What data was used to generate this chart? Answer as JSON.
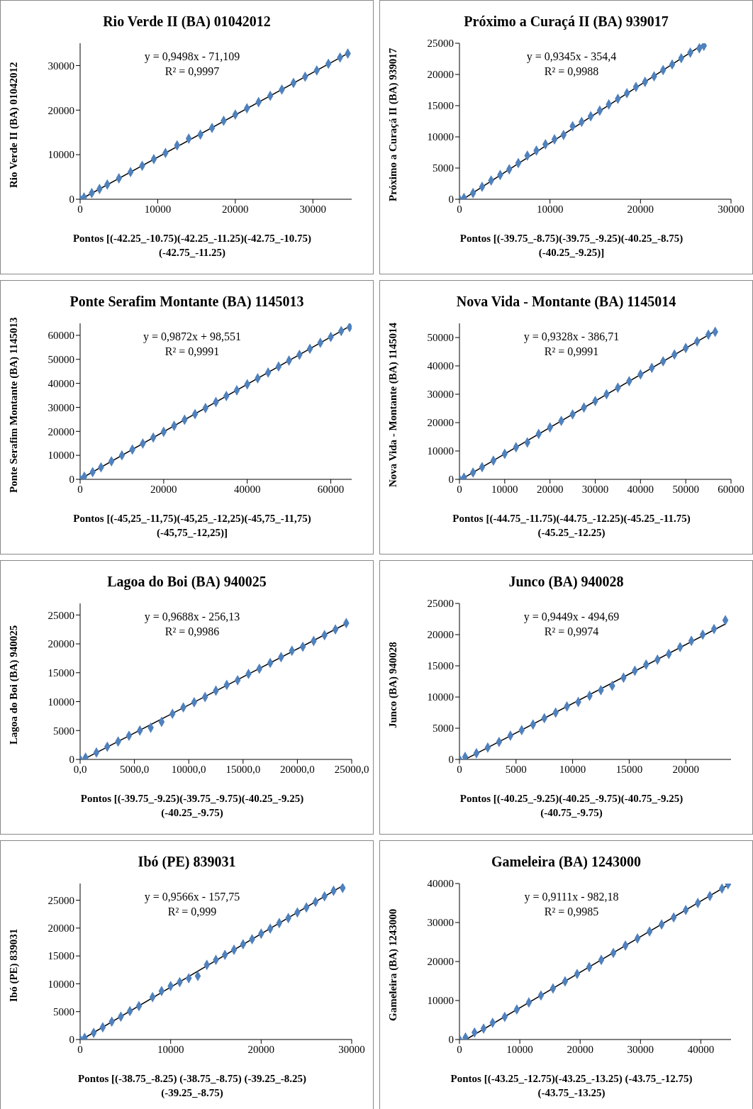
{
  "chart_data": [
    {
      "type": "scatter",
      "title": "Rio Verde II (BA) 01042012",
      "xlabel": "Pontos [(-42.25_-10.75)(-42.25_-11.25)(-42.75_-10.75)(-42.75_-11.25)",
      "ylabel": "Rio Verde II (BA) 01042012",
      "annotations": [
        "y = 0,9498x - 71,109",
        "R² = 0,9997"
      ],
      "xlim": [
        0,
        35000
      ],
      "xticks": [
        0,
        10000,
        20000,
        30000
      ],
      "ylim": [
        0,
        35000
      ],
      "yticks": [
        0,
        10000,
        20000,
        30000
      ],
      "series": [
        {
          "type": "scatter",
          "color": "#4f81bd",
          "marker": "diamond",
          "x": [
            0,
            500,
            1500,
            2500,
            3500,
            5000,
            6500,
            8000,
            9500,
            11000,
            12500,
            14000,
            15500,
            17000,
            18500,
            20000,
            21500,
            23000,
            24500,
            26000,
            27500,
            29000,
            30500,
            32000,
            33500,
            34500
          ],
          "values": [
            0,
            400,
            1400,
            2300,
            3300,
            4700,
            6100,
            7500,
            9000,
            10400,
            12100,
            13600,
            14500,
            16000,
            17600,
            19000,
            20400,
            21800,
            23200,
            24600,
            26100,
            27500,
            28900,
            30400,
            31800,
            32700
          ]
        },
        {
          "type": "line",
          "color": "#000000",
          "marker": "none",
          "x": [
            500,
            34500
          ],
          "values": [
            400,
            32700
          ]
        }
      ]
    },
    {
      "type": "scatter",
      "title": "Próximo a Curaçá II (BA) 939017",
      "xlabel": "Pontos [(-39.75_-8.75)(-39.75_-9.25)(-40.25_-8.75)(-40.25_-9.25)]",
      "ylabel": "Próximo a Curaçá II (BA) 939017",
      "annotations": [
        "y = 0,9345x - 354,4",
        "R² = 0,9988"
      ],
      "xlim": [
        0,
        30000
      ],
      "xticks": [
        0,
        10000,
        20000,
        30000
      ],
      "ylim": [
        0,
        25000
      ],
      "yticks": [
        0,
        5000,
        10000,
        15000,
        20000,
        25000
      ],
      "series": [
        {
          "type": "scatter",
          "color": "#4f81bd",
          "marker": "diamond",
          "x": [
            0,
            500,
            1500,
            2500,
            3500,
            4500,
            5500,
            6500,
            7500,
            8500,
            9500,
            10500,
            11500,
            12500,
            13500,
            14500,
            15500,
            16500,
            17500,
            18500,
            19500,
            20500,
            21500,
            22500,
            23500,
            24500,
            25500,
            26500,
            27000
          ],
          "values": [
            0,
            200,
            1000,
            2000,
            3000,
            3900,
            4800,
            5800,
            7000,
            7800,
            8800,
            9600,
            10300,
            11700,
            12400,
            13300,
            14200,
            15200,
            16100,
            17000,
            18000,
            18800,
            19700,
            20700,
            21600,
            22600,
            23500,
            24200,
            24600
          ]
        },
        {
          "type": "line",
          "color": "#000000",
          "marker": "none",
          "x": [
            500,
            27000
          ],
          "values": [
            100,
            24900
          ]
        }
      ]
    },
    {
      "type": "scatter",
      "title": "Ponte Serafim Montante (BA) 1145013",
      "xlabel": "Pontos [(-45,25_-11,75)(-45,25_-12,25)(-45,75_-11,75)(-45,75_-12,25)]",
      "ylabel": "Ponte Serafim Montante (BA) 1145013",
      "annotations": [
        "y = 0,9872x + 98,551",
        "R² = 0,9991"
      ],
      "xlim": [
        0,
        65000
      ],
      "xticks": [
        0,
        20000,
        40000,
        60000
      ],
      "ylim": [
        0,
        65000
      ],
      "yticks": [
        0,
        10000,
        20000,
        30000,
        40000,
        50000,
        60000
      ],
      "series": [
        {
          "type": "scatter",
          "color": "#4f81bd",
          "marker": "diamond",
          "x": [
            0,
            1000,
            3000,
            5000,
            7500,
            10000,
            12500,
            15000,
            17500,
            20000,
            22500,
            25000,
            27500,
            30000,
            32500,
            35000,
            37500,
            40000,
            42500,
            45000,
            47500,
            50000,
            52500,
            55000,
            57500,
            60000,
            62500,
            64500
          ],
          "values": [
            0,
            1100,
            3000,
            5000,
            7500,
            10000,
            12400,
            14900,
            17400,
            19800,
            22300,
            24800,
            27200,
            29700,
            32200,
            34700,
            37100,
            39600,
            42100,
            44500,
            47000,
            49500,
            51900,
            54400,
            56900,
            59300,
            61800,
            63400
          ]
        },
        {
          "type": "line",
          "color": "#000000",
          "marker": "none",
          "x": [
            0,
            64500
          ],
          "values": [
            100,
            63800
          ]
        }
      ]
    },
    {
      "type": "scatter",
      "title": "Nova Vida - Montante (BA) 1145014",
      "xlabel": "Pontos [(-44.75_-11.75)(-44.75_-12.25)(-45.25_-11.75)(-45.25_-12.25)",
      "ylabel": "Nova Vida - Montante (BA) 1145014",
      "annotations": [
        "y = 0,9328x - 386,71",
        "R² = 0,9991"
      ],
      "xlim": [
        0,
        60000
      ],
      "xticks": [
        0,
        10000,
        20000,
        30000,
        40000,
        50000,
        60000
      ],
      "ylim": [
        0,
        55000
      ],
      "yticks": [
        0,
        10000,
        20000,
        30000,
        40000,
        50000
      ],
      "series": [
        {
          "type": "scatter",
          "color": "#4f81bd",
          "marker": "diamond",
          "x": [
            0,
            1000,
            3000,
            5000,
            7500,
            10000,
            12500,
            15000,
            17500,
            20000,
            22500,
            25000,
            27500,
            30000,
            32500,
            35000,
            37500,
            40000,
            42500,
            45000,
            47500,
            50000,
            52500,
            55000,
            56500
          ],
          "values": [
            0,
            600,
            2400,
            4300,
            6600,
            9000,
            11300,
            13000,
            16000,
            18300,
            20600,
            22900,
            25300,
            27600,
            30000,
            32300,
            34600,
            37000,
            39300,
            41600,
            44000,
            46300,
            48600,
            51000,
            52000
          ]
        },
        {
          "type": "line",
          "color": "#000000",
          "marker": "none",
          "x": [
            500,
            56500
          ],
          "values": [
            100,
            52300
          ]
        }
      ]
    },
    {
      "type": "scatter",
      "title": "Lagoa do Boi (BA) 940025",
      "xlabel": "Pontos [(-39.75_-9.25)(-39.75_-9.75)(-40.25_-9.25)(-40.25_-9.75)",
      "ylabel": "Lagoa do Boi (BA) 940025",
      "annotations": [
        "y = 0,9688x - 256,13",
        "R² = 0,9986"
      ],
      "xlim": [
        0,
        25000
      ],
      "xticks": [
        {
          "value": 0,
          "label": "0,0"
        },
        {
          "value": 5000,
          "label": "5000,0"
        },
        {
          "value": 10000,
          "label": "10000,0"
        },
        {
          "value": 15000,
          "label": "15000,0"
        },
        {
          "value": 20000,
          "label": "20000,0"
        },
        {
          "value": 25000,
          "label": "25000,0"
        }
      ],
      "ylim": [
        0,
        27000
      ],
      "yticks": [
        0,
        5000,
        10000,
        15000,
        20000,
        25000
      ],
      "series": [
        {
          "type": "scatter",
          "color": "#4f81bd",
          "marker": "diamond",
          "x": [
            0,
            500,
            1500,
            2500,
            3500,
            4500,
            5500,
            6500,
            7500,
            8500,
            9500,
            10500,
            11500,
            12500,
            13500,
            14500,
            15500,
            16500,
            17500,
            18500,
            19500,
            20500,
            21500,
            22500,
            23500,
            24500
          ],
          "values": [
            0,
            300,
            1200,
            2200,
            3100,
            4100,
            5000,
            5500,
            6500,
            7900,
            9000,
            9900,
            10800,
            11900,
            12900,
            13700,
            14800,
            15700,
            16700,
            17700,
            18800,
            19500,
            20500,
            21500,
            22500,
            23600
          ]
        },
        {
          "type": "line",
          "color": "#000000",
          "marker": "none",
          "x": [
            500,
            24500
          ],
          "values": [
            200,
            23500
          ]
        }
      ]
    },
    {
      "type": "scatter",
      "title": "Junco (BA) 940028",
      "xlabel": "Pontos [(-40.25_-9.25)(-40.25_-9.75)(-40.75_-9.25)(-40.75_-9.75)",
      "ylabel": "Junco (BA) 940028",
      "annotations": [
        "y = 0,9449x - 494,69",
        "R² = 0,9974"
      ],
      "xlim": [
        0,
        24000
      ],
      "xticks": [
        0,
        5000,
        10000,
        15000,
        20000
      ],
      "ylim": [
        0,
        25000
      ],
      "yticks": [
        0,
        5000,
        10000,
        15000,
        20000,
        25000
      ],
      "series": [
        {
          "type": "scatter",
          "color": "#4f81bd",
          "marker": "diamond",
          "x": [
            0,
            500,
            1500,
            2500,
            3500,
            4500,
            5500,
            6500,
            7500,
            8500,
            9500,
            10500,
            11500,
            12500,
            13500,
            14500,
            15500,
            16500,
            17500,
            18500,
            19500,
            20500,
            21500,
            22500,
            23500
          ],
          "values": [
            0,
            400,
            1000,
            1900,
            2800,
            3800,
            4700,
            5600,
            6600,
            7500,
            8500,
            9200,
            10200,
            11100,
            11800,
            13100,
            14200,
            15200,
            16000,
            16900,
            18000,
            19000,
            20000,
            20900,
            22300
          ]
        },
        {
          "type": "line",
          "color": "#000000",
          "marker": "none",
          "x": [
            600,
            23500
          ],
          "values": [
            100,
            21700
          ]
        }
      ]
    },
    {
      "type": "scatter",
      "title": "Ibó (PE) 839031",
      "xlabel": "Pontos [(-38.75_-8.25) (-38.75_-8.75) (-39.25_-8.25)(-39.25_-8.75)",
      "ylabel": "Ibó (PE) 839031",
      "annotations": [
        "y = 0,9566x - 157,75",
        "R² = 0,999"
      ],
      "xlim": [
        0,
        30000
      ],
      "xticks": [
        0,
        10000,
        20000,
        30000
      ],
      "ylim": [
        0,
        28000
      ],
      "yticks": [
        0,
        5000,
        10000,
        15000,
        20000,
        25000
      ],
      "series": [
        {
          "type": "scatter",
          "color": "#4f81bd",
          "marker": "diamond",
          "x": [
            0,
            500,
            1500,
            2500,
            3500,
            4500,
            5500,
            6500,
            8000,
            9000,
            10000,
            11000,
            12000,
            13000,
            14000,
            15000,
            16000,
            17000,
            18000,
            19000,
            20000,
            21000,
            22000,
            23000,
            24000,
            25000,
            26000,
            27000,
            28000,
            29000
          ],
          "values": [
            0,
            300,
            1200,
            2200,
            3200,
            4100,
            5100,
            6000,
            7600,
            8700,
            9600,
            10300,
            11000,
            11400,
            13400,
            14300,
            15200,
            16100,
            17100,
            18000,
            19000,
            19900,
            20900,
            21800,
            22800,
            23700,
            24700,
            25700,
            26700,
            27200
          ]
        },
        {
          "type": "line",
          "color": "#000000",
          "marker": "none",
          "x": [
            200,
            29000
          ],
          "values": [
            0,
            27600
          ]
        }
      ]
    },
    {
      "type": "scatter",
      "title": "Gameleira (BA) 1243000",
      "xlabel": "Pontos [(-43.25_-12.75)(-43.25_-13.25) (-43.75_-12.75)(-43.75_-13.25)",
      "ylabel": "Gameleira (BA) 1243000",
      "annotations": [
        "y = 0,9111x - 982,18",
        "R² = 0,9985"
      ],
      "xlim": [
        0,
        45000
      ],
      "xticks": [
        0,
        10000,
        20000,
        30000,
        40000
      ],
      "ylim": [
        0,
        40000
      ],
      "yticks": [
        0,
        10000,
        20000,
        30000,
        40000
      ],
      "series": [
        {
          "type": "scatter",
          "color": "#4f81bd",
          "marker": "diamond",
          "x": [
            0,
            1000,
            2500,
            4000,
            5500,
            7500,
            9500,
            11500,
            13500,
            15500,
            17500,
            19500,
            21500,
            23500,
            25500,
            27500,
            29500,
            31500,
            33500,
            35500,
            37500,
            39500,
            41500,
            43500,
            44500
          ],
          "values": [
            0,
            500,
            1800,
            2800,
            4300,
            5800,
            7700,
            9500,
            11300,
            13100,
            14900,
            16800,
            18600,
            20400,
            22200,
            24100,
            25900,
            27700,
            29500,
            31300,
            33200,
            35000,
            36800,
            38700,
            39800
          ]
        },
        {
          "type": "line",
          "color": "#000000",
          "marker": "none",
          "x": [
            1100,
            44500
          ],
          "values": [
            0,
            39600
          ]
        }
      ]
    }
  ]
}
